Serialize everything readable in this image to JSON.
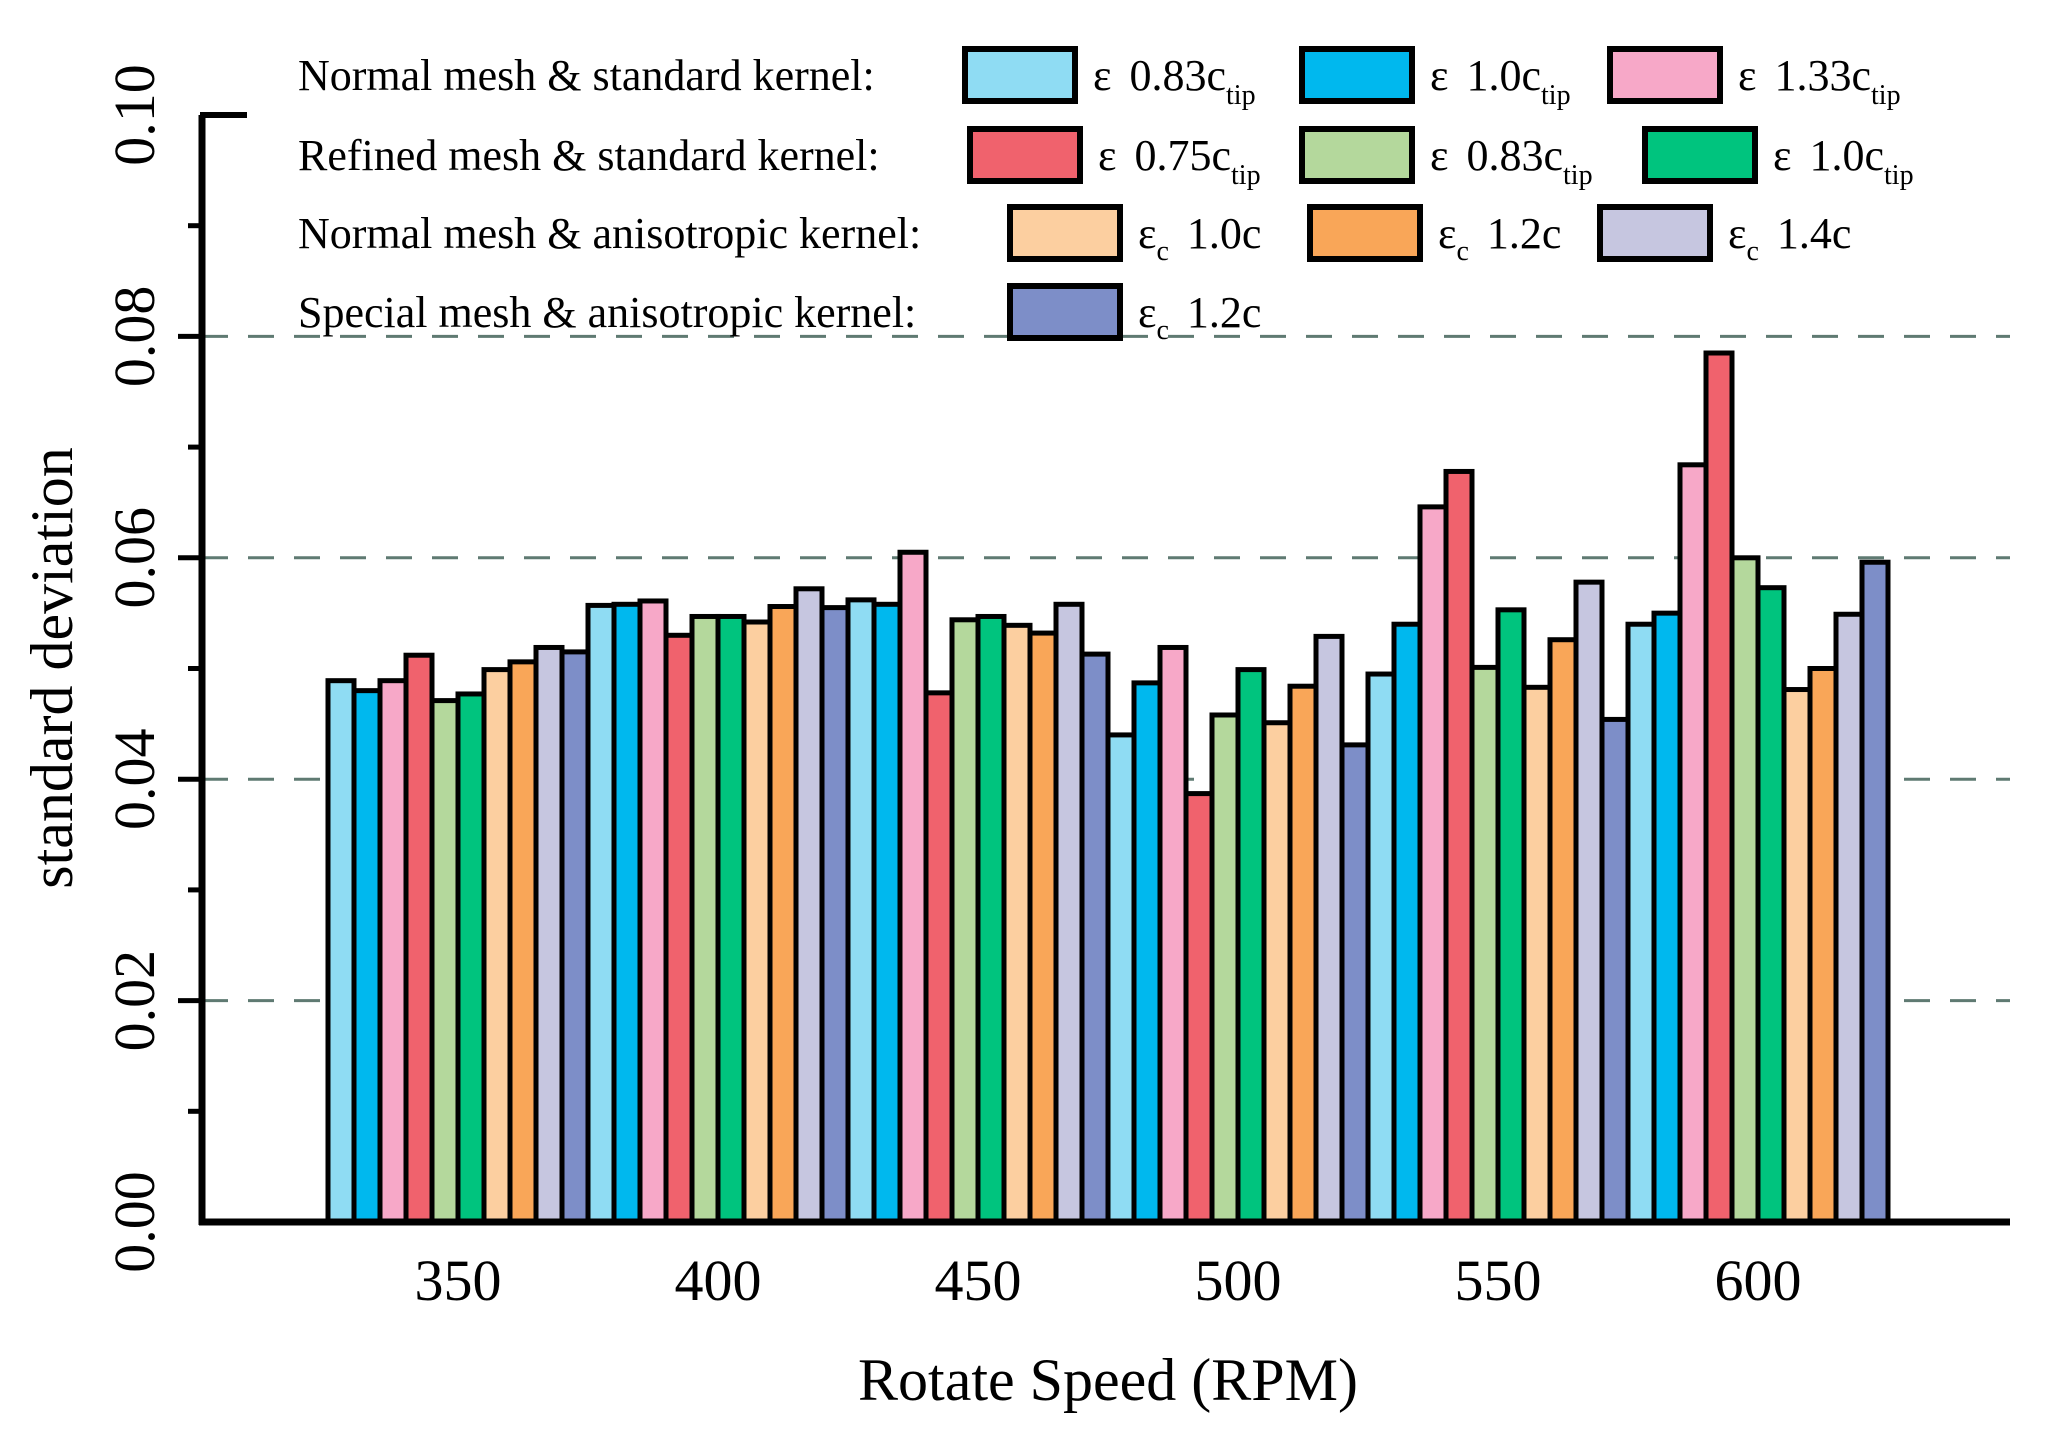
{
  "chart_data": {
    "type": "bar",
    "xlabel": "Rotate Speed (RPM)",
    "ylabel": "standard deviation",
    "ylim": [
      0.0,
      0.1
    ],
    "yticks": [
      "0.00",
      "0.02",
      "0.04",
      "0.06",
      "0.08",
      "0.10"
    ],
    "grid": "dashed horizontal at 0.02, 0.04, 0.06, 0.08",
    "legend_position": "top",
    "categories": [
      "350",
      "400",
      "450",
      "500",
      "550",
      "600"
    ],
    "legend_groups": [
      {
        "label": "Normal mesh & standard kernel:",
        "series": [
          0,
          1,
          2
        ]
      },
      {
        "label": "Refined mesh & standard kernel:",
        "series": [
          3,
          4,
          5
        ]
      },
      {
        "label": "Normal mesh & anisotropic kernel:",
        "series": [
          6,
          7,
          8
        ]
      },
      {
        "label": "Special mesh & anisotropic kernel:",
        "series": [
          9
        ]
      }
    ],
    "series": [
      {
        "name": "ε 0.83c_tip",
        "sym": "ε",
        "symsub": "",
        "val": "0.83c",
        "valsub": "tip",
        "color": "#8fdcf3",
        "values": [
          0.0489,
          0.0557,
          0.0562,
          0.044,
          0.0495,
          0.054
        ]
      },
      {
        "name": "ε 1.0c_tip",
        "sym": "ε",
        "symsub": "",
        "val": "1.0c",
        "valsub": "tip",
        "color": "#00b8ee",
        "values": [
          0.048,
          0.0558,
          0.0558,
          0.0487,
          0.054,
          0.055
        ]
      },
      {
        "name": "ε 1.33c_tip",
        "sym": "ε",
        "symsub": "",
        "val": "1.33c",
        "valsub": "tip",
        "color": "#f7a8c8",
        "values": [
          0.0489,
          0.0561,
          0.0605,
          0.0519,
          0.0646,
          0.0684
        ]
      },
      {
        "name": "ε 0.75c_tip",
        "sym": "ε",
        "symsub": "",
        "val": "0.75c",
        "valsub": "tip",
        "color": "#f0626d",
        "values": [
          0.0512,
          0.053,
          0.0478,
          0.0387,
          0.0678,
          0.0785
        ]
      },
      {
        "name": "ε 0.83c_tip",
        "sym": "ε",
        "symsub": "",
        "val": "0.83c",
        "valsub": "tip",
        "color": "#b4d89c",
        "values": [
          0.0471,
          0.0547,
          0.0544,
          0.0458,
          0.0501,
          0.06
        ]
      },
      {
        "name": "ε 1.0c_tip",
        "sym": "ε",
        "symsub": "",
        "val": "1.0c",
        "valsub": "tip",
        "color": "#00c47e",
        "values": [
          0.0477,
          0.0547,
          0.0547,
          0.0499,
          0.0553,
          0.0573
        ]
      },
      {
        "name": "ε_c 1.0c",
        "sym": "ε",
        "symsub": "c",
        "val": "1.0c",
        "valsub": "",
        "color": "#fccfa0",
        "values": [
          0.0499,
          0.0542,
          0.0539,
          0.0451,
          0.0483,
          0.0481
        ]
      },
      {
        "name": "ε_c 1.2c",
        "sym": "ε",
        "symsub": "c",
        "val": "1.2c",
        "valsub": "",
        "color": "#f9a658",
        "values": [
          0.0506,
          0.0556,
          0.0532,
          0.0484,
          0.0526,
          0.05
        ]
      },
      {
        "name": "ε_c 1.4c",
        "sym": "ε",
        "symsub": "c",
        "val": "1.4c",
        "valsub": "",
        "color": "#c6c6e0",
        "values": [
          0.0519,
          0.0572,
          0.0558,
          0.0529,
          0.0578,
          0.0549
        ]
      },
      {
        "name": "ε_c 1.2c",
        "sym": "ε",
        "symsub": "c",
        "val": "1.2c",
        "valsub": "",
        "color": "#7d8ec8",
        "values": [
          0.0515,
          0.0555,
          0.0513,
          0.0431,
          0.0454,
          0.0596
        ]
      }
    ]
  }
}
